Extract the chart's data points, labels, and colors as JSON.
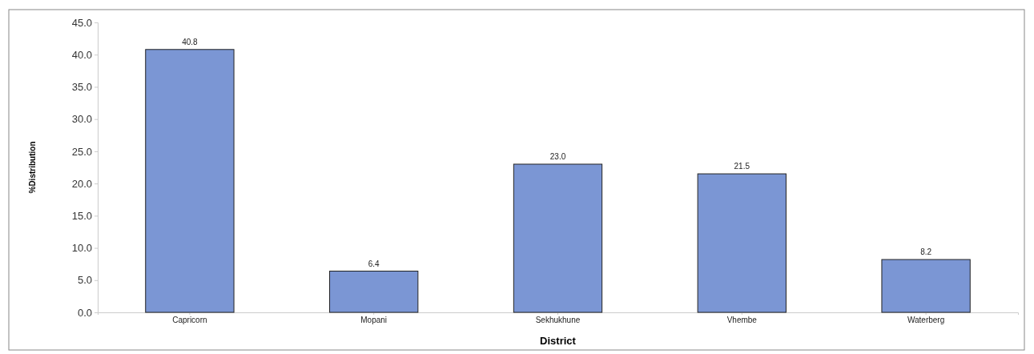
{
  "chart_data": {
    "type": "bar",
    "xlabel": "District",
    "ylabel": "%Distribution",
    "categories": [
      "Capricorn",
      "Mopani",
      "Sekhukhune",
      "Vhembe",
      "Waterberg"
    ],
    "values": [
      40.8,
      6.4,
      23.0,
      21.5,
      8.2
    ],
    "value_labels": [
      "40.8",
      "6.4",
      "23.0",
      "21.5",
      "8.2"
    ],
    "color": "#7b96d4",
    "ylim": [
      0,
      45
    ],
    "yticks": [
      {
        "value": 0,
        "label": "0.0"
      },
      {
        "value": 5,
        "label": "5.0"
      },
      {
        "value": 10,
        "label": "10.0"
      },
      {
        "value": 15,
        "label": "15.0"
      },
      {
        "value": 20,
        "label": "20.0"
      },
      {
        "value": 25,
        "label": "25.0"
      },
      {
        "value": 30,
        "label": "30.0"
      },
      {
        "value": 35,
        "label": "35.0"
      },
      {
        "value": 40,
        "label": "40.0"
      },
      {
        "value": 45,
        "label": "45.0"
      }
    ],
    "grid": false
  }
}
